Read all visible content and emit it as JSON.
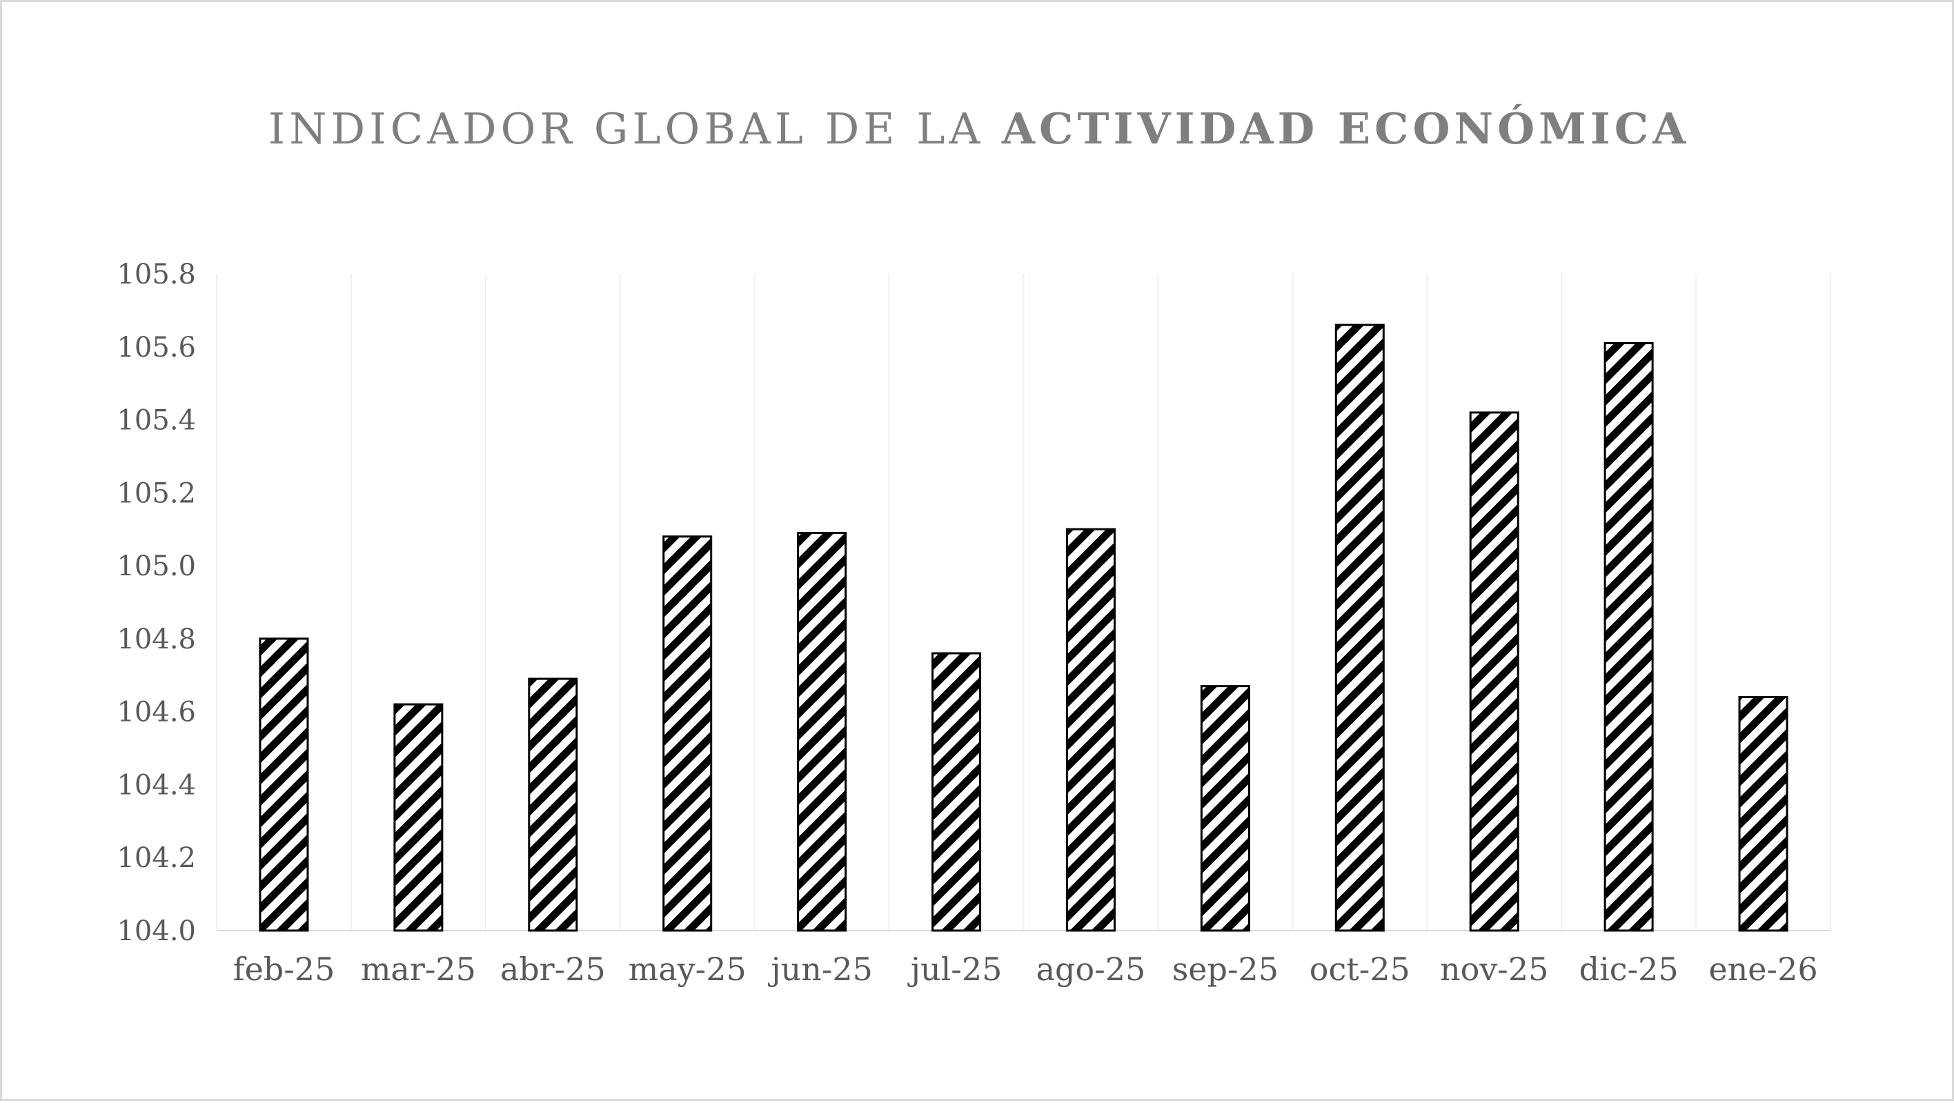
{
  "chart_data": {
    "type": "bar",
    "title_parts": [
      "INDICADOR GLOBAL DE LA ",
      "ACTIVIDAD ECONÓMICA"
    ],
    "categories": [
      "feb-25",
      "mar-25",
      "abr-25",
      "may-25",
      "jun-25",
      "jul-25",
      "ago-25",
      "sep-25",
      "oct-25",
      "nov-25",
      "dic-25",
      "ene-26"
    ],
    "values": [
      104.8,
      104.62,
      104.69,
      105.08,
      105.09,
      104.76,
      105.1,
      104.67,
      105.66,
      105.42,
      105.61,
      104.64
    ],
    "ylim": [
      104.0,
      105.8
    ],
    "yticks": [
      "104.0",
      "104.2",
      "104.4",
      "104.6",
      "104.8",
      "105.0",
      "105.2",
      "105.4",
      "105.6",
      "105.8"
    ],
    "grid": "vertical category gridlines",
    "bar_fill": "black/white diagonal hatch",
    "colors": {
      "title": "#7f7f7f",
      "bar_stroke": "#000000",
      "grid": "#efefef",
      "text": "#595959"
    }
  }
}
